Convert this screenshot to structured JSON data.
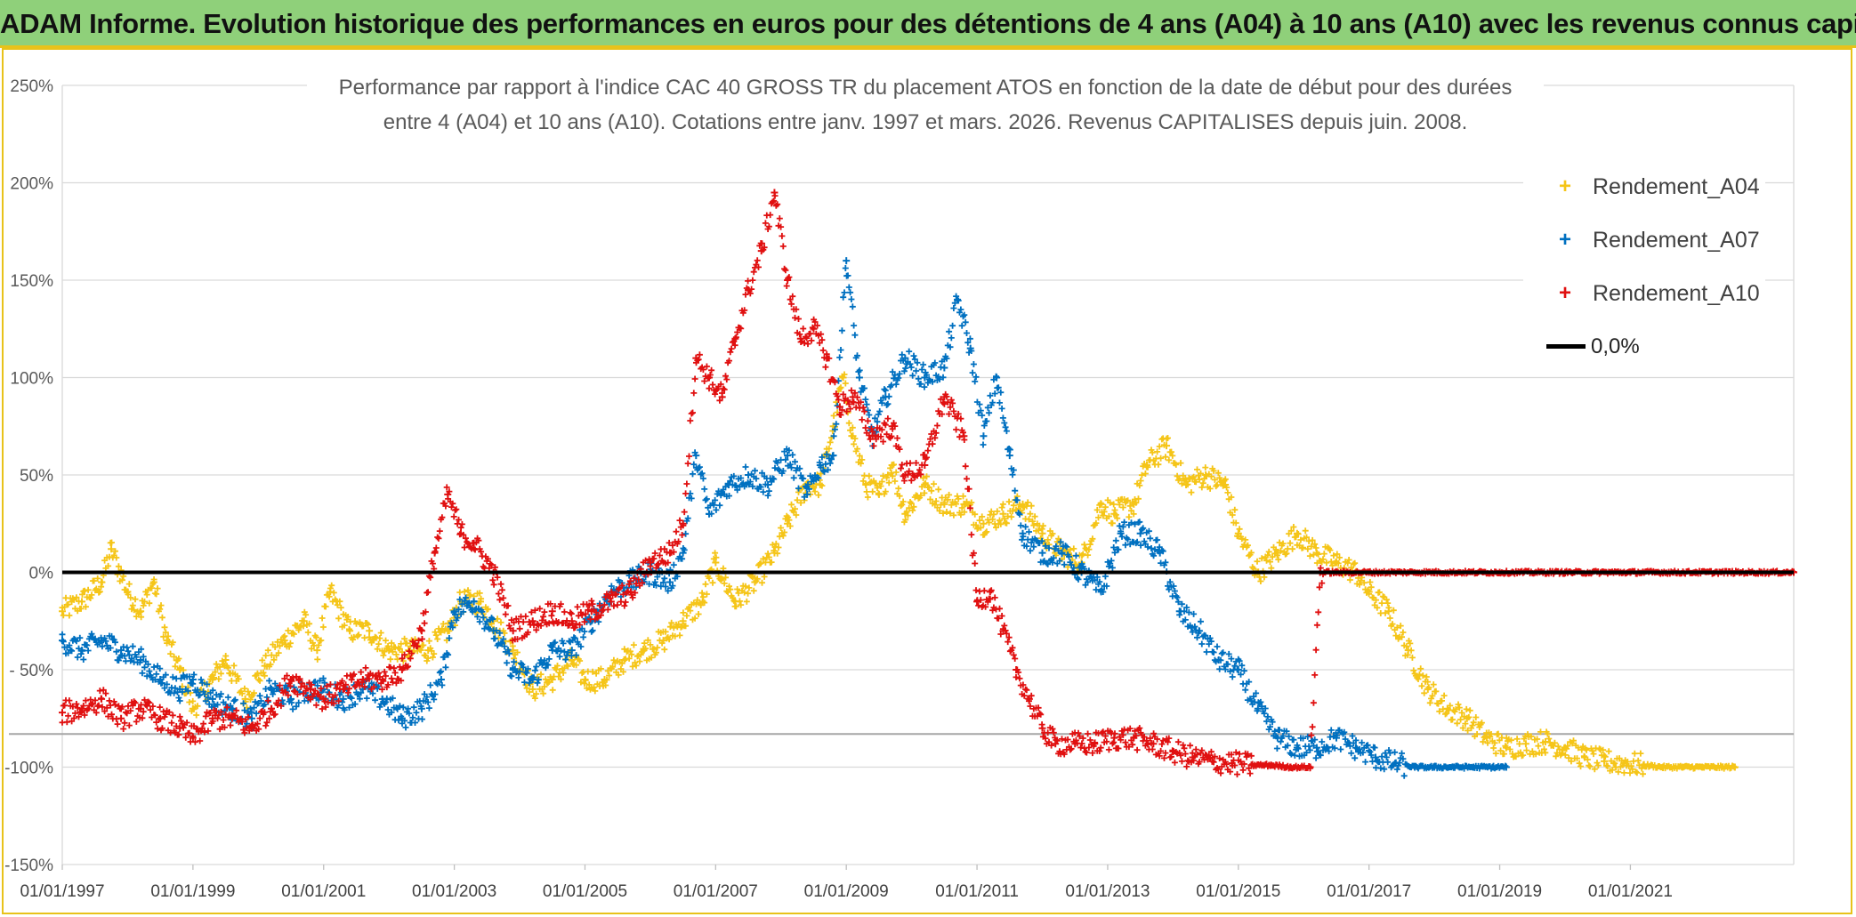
{
  "banner": {
    "title": "ADAM Informe. Evolution historique des performances en euros pour des détentions de 4 ans (A04) à 10 ans (A10) avec les revenus connus capitalisés"
  },
  "colors": {
    "banner_bg": "#8fd07a",
    "border_accent": "#e8c21a",
    "series_A04": "#f5c518",
    "series_A07": "#0070c0",
    "series_A10": "#e01010",
    "zero_line": "#000000"
  },
  "legend": {
    "items": [
      {
        "label": "Rendement_A04",
        "color": "#f5c518",
        "symbol": "+"
      },
      {
        "label": "Rendement_A07",
        "color": "#0070c0",
        "symbol": "+"
      },
      {
        "label": "Rendement_A10",
        "color": "#e01010",
        "symbol": "+"
      },
      {
        "label": "0,0%",
        "color": "#000000",
        "symbol": "line"
      }
    ]
  },
  "chart_data": {
    "type": "scatter",
    "title_line1": "Performance par rapport à l'indice CAC 40 GROSS TR  du placement ATOS en fonction de la date de début pour des durées",
    "title_line2": "entre 4 (A04) et 10 ans (A10). Cotations entre janv. 1997 et mars. 2026. Revenus CAPITALISES depuis juin. 2008.",
    "xlabel": "",
    "ylabel": "",
    "x_unit": "year",
    "xlim": [
      1997.0,
      2023.5
    ],
    "ylim": [
      -150,
      250
    ],
    "ytick_values": [
      -150,
      -100,
      -50,
      0,
      50,
      100,
      150,
      200,
      250
    ],
    "ytick_labels": [
      "-150%",
      "-100%",
      "- 50%",
      "0%",
      "50%",
      "100%",
      "150%",
      "200%",
      "250%"
    ],
    "xtick_values": [
      1997,
      1999,
      2001,
      2003,
      2005,
      2007,
      2009,
      2011,
      2013,
      2015,
      2017,
      2019,
      2021
    ],
    "xtick_labels": [
      "01/01/1997",
      "01/01/1999",
      "01/01/2001",
      "01/01/2003",
      "01/01/2005",
      "01/01/2007",
      "01/01/2009",
      "01/01/2011",
      "01/01/2013",
      "01/01/2015",
      "01/01/2017",
      "01/01/2019",
      "01/01/2021"
    ],
    "reference_line_y": -83,
    "zero_line_y": 0,
    "grid": "horizontal",
    "legend_position": "top-right",
    "series": [
      {
        "name": "Rendement_A04",
        "color": "#f5c518",
        "x": [
          1997.0,
          1997.3,
          1997.6,
          1997.75,
          1998.0,
          1998.2,
          1998.4,
          1998.6,
          1998.8,
          1999.0,
          1999.3,
          1999.5,
          1999.8,
          2000.1,
          2000.4,
          2000.7,
          2000.9,
          2001.1,
          2001.4,
          2001.7,
          2002.0,
          2002.3,
          2002.6,
          2002.9,
          2003.1,
          2003.4,
          2003.6,
          2003.9,
          2004.2,
          2004.5,
          2004.8,
          2005.0,
          2005.3,
          2005.6,
          2005.9,
          2006.2,
          2006.5,
          2006.8,
          2007.0,
          2007.3,
          2007.6,
          2007.9,
          2008.1,
          2008.4,
          2008.6,
          2008.8,
          2008.95,
          2009.1,
          2009.3,
          2009.5,
          2009.7,
          2009.9,
          2010.2,
          2010.5,
          2010.8,
          2011.1,
          2011.4,
          2011.7,
          2012.0,
          2012.3,
          2012.6,
          2012.9,
          2013.1,
          2013.4,
          2013.6,
          2013.9,
          2014.2,
          2014.5,
          2014.8,
          2015.0,
          2015.3,
          2015.6,
          2015.9,
          2016.2,
          2016.5,
          2016.8,
          2017.0,
          2017.3,
          2017.6,
          2017.9,
          2018.2,
          2018.5,
          2018.8,
          2019.1,
          2019.4,
          2019.7,
          2020.0,
          2020.3,
          2020.6,
          2020.9,
          2021.2,
          2021.5,
          2021.8,
          2022.1,
          2022.4,
          2022.6
        ],
        "y": [
          -20,
          -15,
          -5,
          12,
          -10,
          -20,
          -5,
          -35,
          -50,
          -70,
          -55,
          -45,
          -65,
          -48,
          -35,
          -25,
          -40,
          -10,
          -30,
          -30,
          -40,
          -40,
          -40,
          -30,
          -15,
          -15,
          -25,
          -40,
          -60,
          -55,
          -45,
          -55,
          -55,
          -45,
          -40,
          -35,
          -25,
          -15,
          5,
          -15,
          -5,
          10,
          25,
          45,
          45,
          75,
          100,
          70,
          45,
          40,
          55,
          30,
          45,
          35,
          35,
          25,
          30,
          35,
          20,
          10,
          5,
          35,
          30,
          35,
          55,
          65,
          45,
          50,
          45,
          20,
          0,
          10,
          20,
          10,
          5,
          0,
          -10,
          -20,
          -40,
          -60,
          -70,
          -75,
          -85,
          -90,
          -88,
          -87,
          -90,
          -95,
          -97,
          -98,
          -99,
          -100,
          -100,
          -100,
          -100,
          -100
        ]
      },
      {
        "name": "Rendement_A07",
        "color": "#0070c0",
        "x": [
          1997.0,
          1997.3,
          1997.6,
          1997.9,
          1998.2,
          1998.5,
          1998.8,
          1999.0,
          1999.3,
          1999.6,
          1999.9,
          2000.2,
          2000.5,
          2000.8,
          2001.0,
          2001.3,
          2001.6,
          2001.9,
          2002.2,
          2002.5,
          2002.8,
          2003.0,
          2003.3,
          2003.6,
          2003.9,
          2004.2,
          2004.5,
          2004.8,
          2005.1,
          2005.4,
          2005.7,
          2006.0,
          2006.3,
          2006.5,
          2006.7,
          2006.9,
          2007.2,
          2007.5,
          2007.8,
          2008.1,
          2008.4,
          2008.6,
          2008.8,
          2009.0,
          2009.2,
          2009.4,
          2009.6,
          2009.9,
          2010.2,
          2010.5,
          2010.7,
          2010.9,
          2011.1,
          2011.3,
          2011.5,
          2011.7,
          2012.0,
          2012.3,
          2012.6,
          2012.9,
          2013.2,
          2013.5,
          2013.8,
          2014.1,
          2014.4,
          2014.7,
          2015.0,
          2015.3,
          2015.6,
          2015.9,
          2016.2,
          2016.5,
          2016.8,
          2017.1,
          2017.4,
          2017.7,
          2018.0,
          2018.3,
          2018.6,
          2018.9,
          2019.1
        ],
        "y": [
          -35,
          -40,
          -35,
          -40,
          -45,
          -55,
          -60,
          -55,
          -65,
          -70,
          -75,
          -60,
          -65,
          -60,
          -60,
          -65,
          -60,
          -65,
          -75,
          -70,
          -55,
          -20,
          -15,
          -30,
          -50,
          -55,
          -40,
          -40,
          -25,
          -10,
          -5,
          0,
          -5,
          10,
          60,
          30,
          45,
          50,
          45,
          60,
          40,
          55,
          60,
          160,
          100,
          70,
          90,
          110,
          100,
          105,
          140,
          115,
          70,
          100,
          60,
          20,
          10,
          10,
          0,
          -10,
          20,
          20,
          10,
          -20,
          -30,
          -45,
          -50,
          -70,
          -85,
          -90,
          -90,
          -85,
          -90,
          -95,
          -98,
          -100,
          -100,
          -100,
          -100,
          -100,
          -100
        ]
      },
      {
        "name": "Rendement_A10",
        "color": "#e01010",
        "x": [
          1997.0,
          1997.3,
          1997.6,
          1997.9,
          1998.2,
          1998.5,
          1998.8,
          1999.0,
          1999.3,
          1999.6,
          1999.9,
          2000.2,
          2000.5,
          2000.8,
          2001.0,
          2001.3,
          2001.6,
          2001.9,
          2002.2,
          2002.5,
          2002.7,
          2002.9,
          2003.1,
          2003.3,
          2003.6,
          2003.9,
          2004.2,
          2004.5,
          2004.8,
          2005.1,
          2005.4,
          2005.7,
          2006.0,
          2006.3,
          2006.5,
          2006.7,
          2006.9,
          2007.1,
          2007.3,
          2007.5,
          2007.7,
          2007.9,
          2008.1,
          2008.3,
          2008.5,
          2008.7,
          2008.9,
          2009.1,
          2009.4,
          2009.7,
          2009.9,
          2010.2,
          2010.5,
          2010.8,
          2011.0,
          2011.2,
          2011.4,
          2011.6,
          2011.8,
          2012.0,
          2012.2,
          2012.5,
          2012.8,
          2013.1,
          2013.4,
          2013.7,
          2014.0,
          2014.3,
          2014.6,
          2014.9,
          2015.2,
          2015.5,
          2015.8,
          2016.1,
          2016.25,
          2016.5,
          2017.0,
          2018.0,
          2019.0,
          2020.0,
          2021.0,
          2022.0,
          2023.0,
          2023.5
        ],
        "y": [
          -72,
          -70,
          -65,
          -75,
          -70,
          -75,
          -80,
          -85,
          -75,
          -75,
          -80,
          -70,
          -55,
          -60,
          -65,
          -60,
          -55,
          -55,
          -50,
          -30,
          10,
          40,
          20,
          15,
          0,
          -30,
          -25,
          -20,
          -25,
          -20,
          -15,
          -10,
          5,
          10,
          25,
          110,
          100,
          90,
          120,
          145,
          165,
          195,
          150,
          120,
          125,
          110,
          85,
          90,
          70,
          75,
          50,
          55,
          90,
          70,
          -15,
          -10,
          -30,
          -50,
          -65,
          -80,
          -88,
          -88,
          -88,
          -85,
          -85,
          -88,
          -92,
          -95,
          -97,
          -98,
          -99,
          -99,
          -100,
          -100,
          0,
          0,
          0,
          0,
          0,
          0,
          0,
          0,
          0,
          0
        ]
      }
    ]
  }
}
